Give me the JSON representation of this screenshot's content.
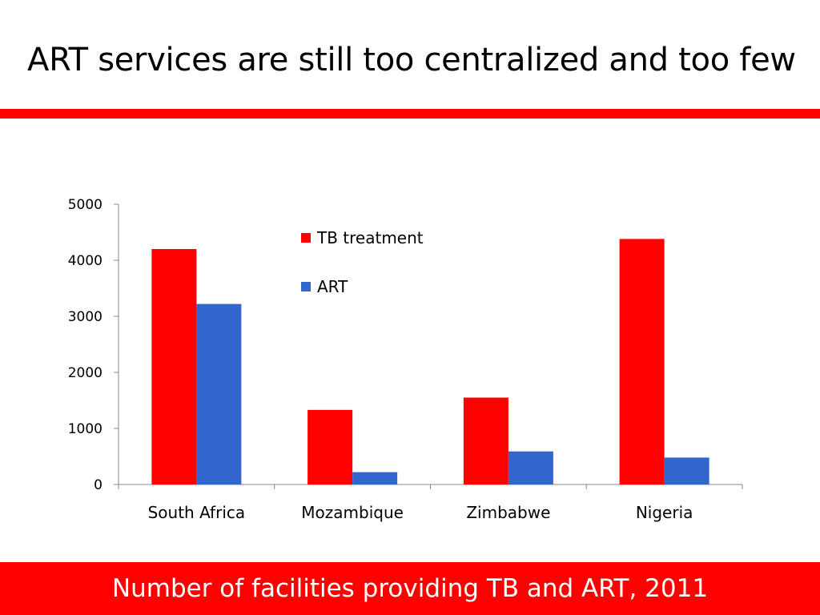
{
  "slide": {
    "title": "ART services are still too centralized and too few",
    "caption": "Number of facilities providing TB and ART, 2011"
  },
  "colors": {
    "accent": "#ff0000",
    "tb_treatment": "#ff0000",
    "art": "#3366cc",
    "caption_text": "#ffffff"
  },
  "chart_data": {
    "type": "bar",
    "categories": [
      "South Africa",
      "Mozambique",
      "Zimbabwe",
      "Nigeria"
    ],
    "series": [
      {
        "name": "TB treatment",
        "color": "#ff0000",
        "values": [
          4200,
          1330,
          1550,
          4380
        ]
      },
      {
        "name": "ART",
        "color": "#3366cc",
        "values": [
          3220,
          220,
          590,
          480
        ]
      }
    ],
    "ylim": [
      0,
      5000
    ],
    "yticks": [
      "0",
      "1000",
      "2000",
      "3000",
      "4000",
      "5000"
    ],
    "xlabel": "",
    "ylabel": "",
    "grid": false,
    "legend_position": "top-center"
  }
}
